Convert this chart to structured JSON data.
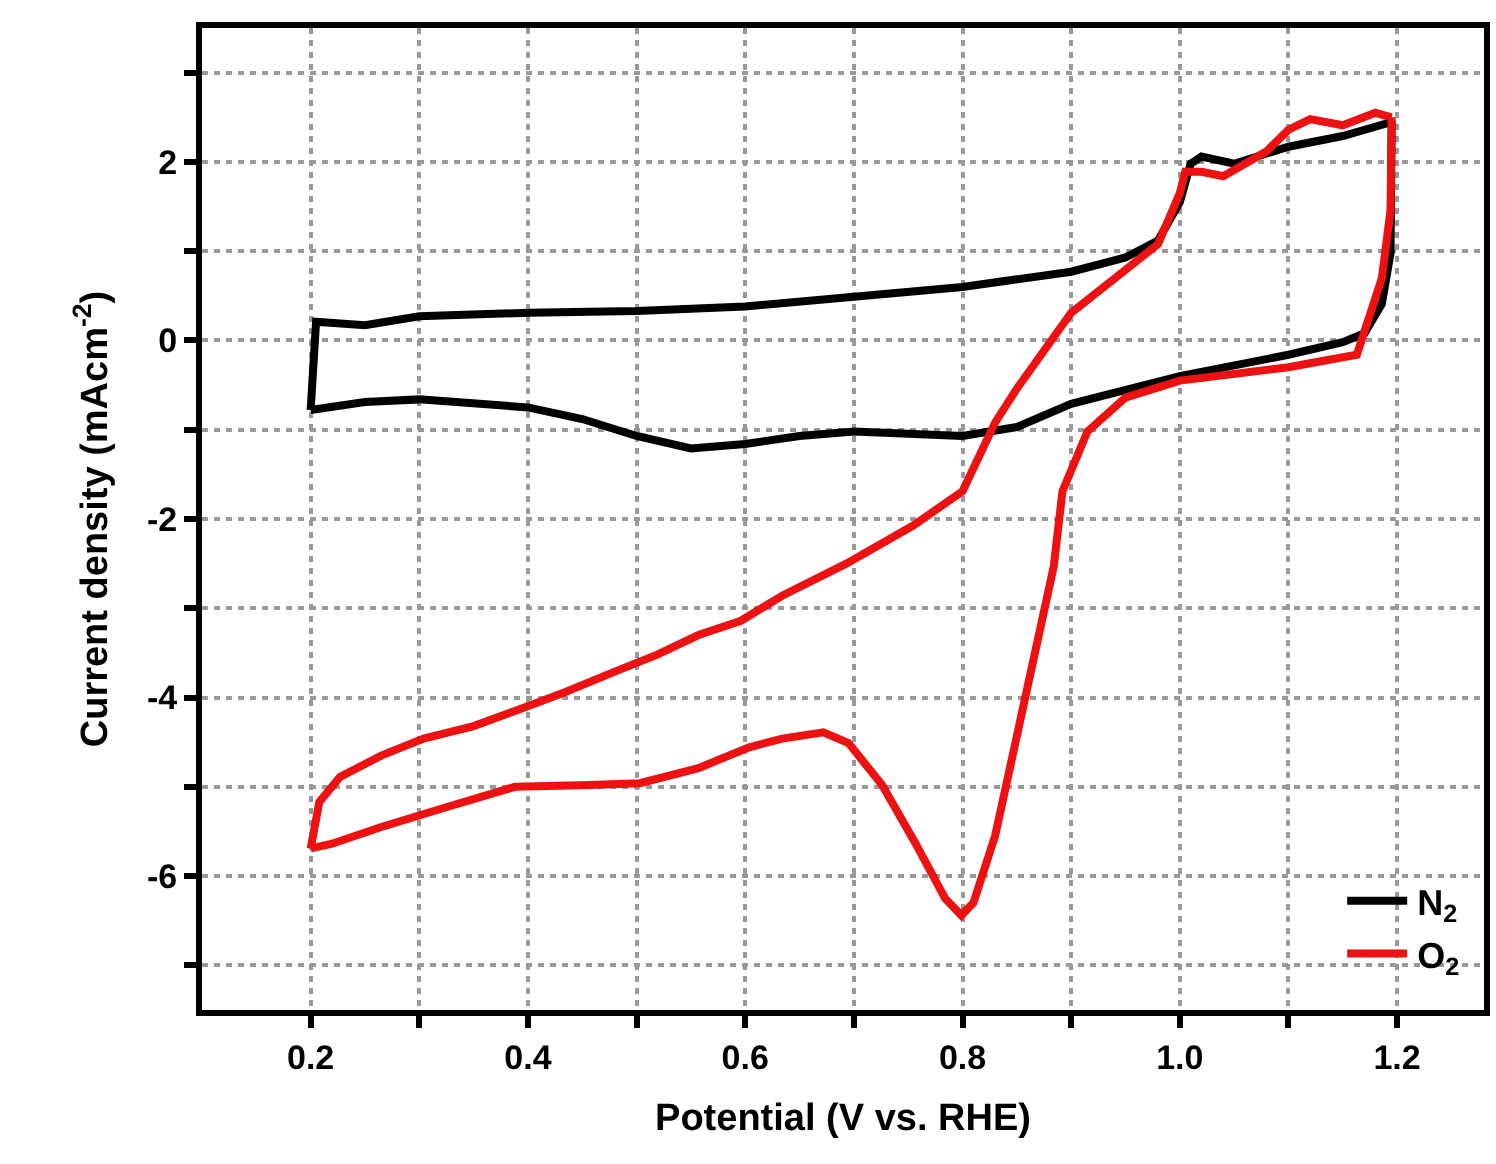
{
  "chart_data": {
    "type": "line",
    "xlabel": "Potential (V vs. RHE)",
    "ylabel": "Current density (mAcm$^{-2}$)",
    "xlim": [
      0.1,
      1.28
    ],
    "ylim": [
      -7.5,
      3.5
    ],
    "xticks": [
      0.2,
      {
        "value": 0.3,
        "label": null
      },
      0.4,
      {
        "value": 0.5,
        "label": null
      },
      0.6,
      {
        "value": 0.7,
        "label": null
      },
      0.8,
      {
        "value": 0.9,
        "label": null
      },
      {
        "value": 1.0,
        "label": "1.0"
      },
      {
        "value": 1.1,
        "label": null
      },
      1.2
    ],
    "yticks": [
      {
        "value": -7,
        "label": null
      },
      -6,
      {
        "value": -5,
        "label": null
      },
      -4,
      {
        "value": -3,
        "label": null
      },
      -2,
      {
        "value": -1,
        "label": null
      },
      0,
      {
        "value": 1,
        "label": null
      },
      2,
      {
        "value": 3,
        "label": null
      }
    ],
    "grid": true,
    "legend": "bottom right",
    "marker": "none",
    "line_style": "solid",
    "series": [
      {
        "name": "N$_{2}$",
        "color": "#000000",
        "x": [
          0.2,
          0.205,
          0.25,
          0.3,
          0.4,
          0.5,
          0.6,
          0.7,
          0.8,
          0.9,
          0.95,
          0.98,
          1.0,
          1.01,
          1.02,
          1.05,
          1.1,
          1.15,
          1.19,
          1.195
        ],
        "values": [
          -0.78,
          0.21,
          0.17,
          0.27,
          0.31,
          0.33,
          0.38,
          0.49,
          0.6,
          0.77,
          0.93,
          1.12,
          1.55,
          1.98,
          2.06,
          1.98,
          2.17,
          2.29,
          2.43,
          2.46
        ]
      },
      {
        "color": "#000000",
        "x": [
          0.2,
          0.25,
          0.3,
          0.4,
          0.45,
          0.5,
          0.55,
          0.6,
          0.65,
          0.7,
          0.8,
          0.85,
          0.9,
          1.0,
          1.1,
          1.15,
          1.17,
          1.186,
          1.194,
          1.195
        ],
        "values": [
          -0.78,
          -0.69,
          -0.66,
          -0.75,
          -0.88,
          -1.07,
          -1.21,
          -1.16,
          -1.07,
          -1.02,
          -1.07,
          -0.97,
          -0.71,
          -0.4,
          -0.16,
          -0.02,
          0.08,
          0.41,
          0.98,
          2.46
        ]
      },
      {
        "name": "O$_{2}$",
        "color": "#ee1111",
        "x": [
          0.2,
          0.208,
          0.227,
          0.265,
          0.304,
          0.35,
          0.388,
          0.434,
          0.48,
          0.519,
          0.557,
          0.596,
          0.634,
          0.693,
          0.755,
          0.8,
          0.83,
          0.85,
          0.9,
          0.95,
          0.98,
          1.0,
          1.005,
          1.02,
          1.04,
          1.08,
          1.1,
          1.12,
          1.15,
          1.18,
          1.195
        ],
        "values": [
          -5.69,
          -5.17,
          -4.89,
          -4.65,
          -4.46,
          -4.32,
          -4.15,
          -3.94,
          -3.71,
          -3.52,
          -3.3,
          -3.14,
          -2.86,
          -2.5,
          -2.07,
          -1.69,
          -0.92,
          -0.54,
          0.31,
          0.79,
          1.08,
          1.65,
          1.89,
          1.89,
          1.84,
          2.12,
          2.36,
          2.48,
          2.41,
          2.55,
          2.5
        ]
      },
      {
        "color": "#ee1111",
        "x": [
          0.2,
          0.219,
          0.265,
          0.327,
          0.388,
          0.457,
          0.503,
          0.557,
          0.603,
          0.634,
          0.672,
          0.695,
          0.726,
          0.757,
          0.784,
          0.799,
          0.81,
          0.83,
          0.857,
          0.884,
          0.892,
          0.915,
          0.95,
          1.0,
          1.1,
          1.14,
          1.163,
          1.186,
          1.194,
          1.195
        ],
        "values": [
          -5.69,
          -5.64,
          -5.45,
          -5.22,
          -5.0,
          -4.98,
          -4.96,
          -4.79,
          -4.56,
          -4.46,
          -4.39,
          -4.51,
          -4.98,
          -5.64,
          -6.25,
          -6.44,
          -6.3,
          -5.55,
          -4.04,
          -2.53,
          -1.69,
          -1.02,
          -0.64,
          -0.45,
          -0.3,
          -0.21,
          -0.16,
          0.7,
          1.46,
          2.5
        ]
      }
    ]
  }
}
